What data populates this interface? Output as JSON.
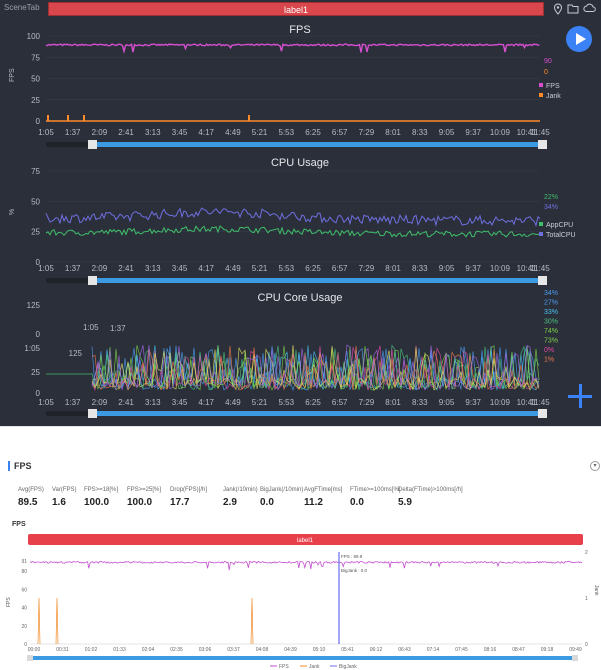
{
  "top": {
    "scene_tab": "SceneTab",
    "label": "label1",
    "icons": [
      "location-pin-icon",
      "folder-icon",
      "cloud-icon"
    ],
    "x_ticks": [
      "1:05",
      "1:37",
      "2:09",
      "2:41",
      "3:13",
      "3:45",
      "4:17",
      "4:49",
      "5:21",
      "5:53",
      "6:25",
      "6:57",
      "7:29",
      "8:01",
      "8:33",
      "9:05",
      "9:37",
      "10:09",
      "10:41",
      "11:45"
    ],
    "fps_chart": {
      "title": "FPS",
      "ylabel": "FPS",
      "y_ticks": [
        "100",
        "75",
        "50",
        "25",
        "0"
      ],
      "side_values": [
        "90",
        "0"
      ],
      "legend": [
        "FPS",
        "Jank"
      ],
      "colors": {
        "fps": "#d64fd0",
        "jank": "#ff8a2a"
      },
      "fps_level": 89.5,
      "ylim": [
        0,
        100
      ]
    },
    "cpu_chart": {
      "title": "CPU Usage",
      "ylabel": "%",
      "y_ticks": [
        "75",
        "50",
        "25",
        "0"
      ],
      "side_values": [
        "22%",
        "34%"
      ],
      "legend": [
        "AppCPU",
        "TotalCPU"
      ],
      "colors": {
        "app": "#3fbf6a",
        "total": "#6f6fe0"
      },
      "ylim": [
        0,
        75
      ]
    },
    "core_chart": {
      "title": "CPU Core Usage",
      "y_ticks": [
        "125",
        "0",
        "1:05",
        "125",
        "25",
        "0"
      ],
      "overlay_ticks": [
        "1:05",
        "1:37"
      ],
      "side_values": [
        "34%",
        "27%",
        "33%",
        "30%",
        "74%",
        "73%",
        "0%",
        "1%"
      ],
      "side_colors": [
        "#4a9df0",
        "#4a9df0",
        "#4ac0f0",
        "#4ac080",
        "#7bd14a",
        "#7bd14a",
        "#e04aa0",
        "#f07a4a"
      ]
    }
  },
  "bottom": {
    "section_title": "FPS",
    "stats": [
      {
        "label": "Avg(FPS)",
        "value": "89.5"
      },
      {
        "label": "Var(FPS)",
        "value": "1.6"
      },
      {
        "label": "FPS>=18[%]",
        "value": "100.0"
      },
      {
        "label": "FPS>=25[%]",
        "value": "100.0"
      },
      {
        "label": "Drop(FPS)[/h]",
        "value": "17.7"
      },
      {
        "label": "Jank(/10min)",
        "value": "2.9"
      },
      {
        "label": "BigJank(/10min)",
        "value": "0.0"
      },
      {
        "label": "AvgFTime[ms]",
        "value": "11.2"
      },
      {
        "label": "FTime>=100ms[%]",
        "value": "0.0"
      },
      {
        "label": "Delta(FTime)>100ms[/h]",
        "value": "5.9"
      }
    ],
    "chart_title": "FPS",
    "label": "label1",
    "y_ticks": [
      "91",
      "80",
      "60",
      "40",
      "20",
      "0"
    ],
    "ylabel": "FPS",
    "right_ticks": [
      "2",
      "1",
      "0"
    ],
    "right_label": "Jank",
    "x_ticks": [
      "00:00",
      "00:31",
      "01:02",
      "01:33",
      "02:04",
      "02:35",
      "03:06",
      "03:37",
      "04:08",
      "04:39",
      "05:10",
      "05:41",
      "06:12",
      "06:43",
      "07:14",
      "07:45",
      "08:16",
      "08:47",
      "09:18",
      "09:49"
    ],
    "tooltip": [
      "FPS : 89.9",
      "BigJank : 0.0"
    ],
    "legend": [
      "FPS",
      "Jank",
      "BigJank"
    ]
  }
}
